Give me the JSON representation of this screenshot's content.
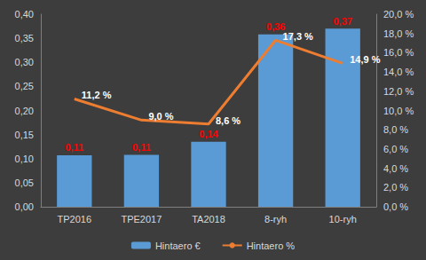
{
  "chart_data": {
    "type": "bar",
    "categories": [
      "TP2016",
      "TPE2017",
      "TA2018",
      "8-ryh",
      "10-ryh"
    ],
    "series": [
      {
        "name": "Hintaero €",
        "type": "bar",
        "color": "#5b9bd5",
        "values": [
          0.107,
          0.108,
          0.135,
          0.358,
          0.37
        ],
        "value_labels": [
          "0,11",
          "0,11",
          "0,14",
          "0,36",
          "0,37"
        ]
      },
      {
        "name": "Hintaero %",
        "type": "line",
        "axis": "y2",
        "color": "#ed7d31",
        "marker": "none",
        "values": [
          11.2,
          9.0,
          8.6,
          17.3,
          14.9
        ],
        "value_labels": [
          "11,2 %",
          "9,0 %",
          "8,6 %",
          "17,3 %",
          "14,9 %"
        ]
      }
    ],
    "ylim": [
      0,
      0.4
    ],
    "yticks": [
      {
        "value": 0,
        "label": "0,00"
      },
      {
        "value": 0.05,
        "label": "0,05"
      },
      {
        "value": 0.1,
        "label": "0,10"
      },
      {
        "value": 0.15,
        "label": "0,15"
      },
      {
        "value": 0.2,
        "label": "0,20"
      },
      {
        "value": 0.25,
        "label": "0,25"
      },
      {
        "value": 0.3,
        "label": "0,30"
      },
      {
        "value": 0.35,
        "label": "0,35"
      },
      {
        "value": 0.4,
        "label": "0,40"
      }
    ],
    "y2lim": [
      0,
      20
    ],
    "y2ticks": [
      {
        "value": 0,
        "label": "0,0 %"
      },
      {
        "value": 2,
        "label": "2,0 %"
      },
      {
        "value": 4,
        "label": "4,0 %"
      },
      {
        "value": 6,
        "label": "6,0 %"
      },
      {
        "value": 8,
        "label": "8,0 %"
      },
      {
        "value": 10,
        "label": "10,0 %"
      },
      {
        "value": 12,
        "label": "12,0 %"
      },
      {
        "value": 14,
        "label": "14,0 %"
      },
      {
        "value": 16,
        "label": "16,0 %"
      },
      {
        "value": 18,
        "label": "18,0 %"
      },
      {
        "value": 20,
        "label": "20,0 %"
      }
    ],
    "data_labels": true,
    "legend": "bottom",
    "grid": false
  }
}
